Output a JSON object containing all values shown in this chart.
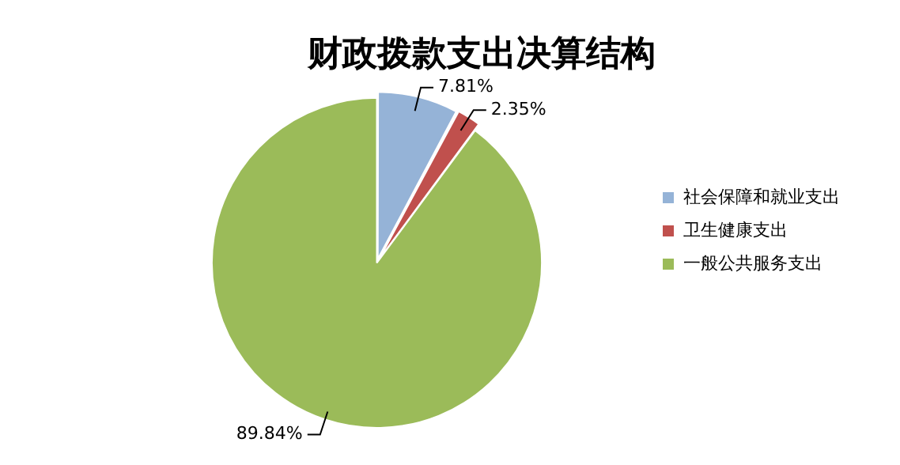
{
  "chart_data": {
    "type": "pie",
    "title": "财政拨款支出决算结构",
    "categories": [
      "社会保障和就业支出",
      "卫生健康支出",
      "一般公共服务支出"
    ],
    "values": [
      7.81,
      2.35,
      89.84
    ],
    "colors": [
      "#95b3d7",
      "#c0504d",
      "#9bbb59"
    ],
    "value_labels": [
      "7.81%",
      "2.35%",
      "89.84%"
    ],
    "legend": "right"
  }
}
